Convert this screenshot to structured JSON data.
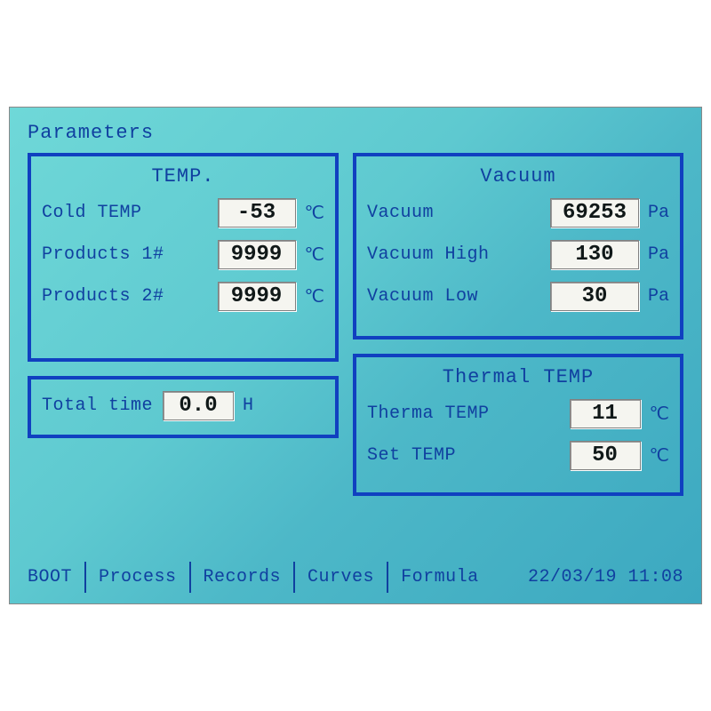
{
  "title": "Parameters",
  "temp_panel": {
    "title": "TEMP.",
    "rows": [
      {
        "label": "Cold TEMP",
        "value": "-53",
        "unit": "℃"
      },
      {
        "label": "Products 1#",
        "value": "9999",
        "unit": "℃"
      },
      {
        "label": "Products 2#",
        "value": "9999",
        "unit": "℃"
      }
    ]
  },
  "time_panel": {
    "label": "Total time",
    "value": "0.0",
    "unit": "H"
  },
  "vacuum_panel": {
    "title": "Vacuum",
    "rows": [
      {
        "label": "Vacuum",
        "value": "69253",
        "unit": "Pa"
      },
      {
        "label": "Vacuum High",
        "value": "130",
        "unit": "Pa"
      },
      {
        "label": "Vacuum Low",
        "value": "30",
        "unit": "Pa"
      }
    ]
  },
  "thermal_panel": {
    "title": "Thermal TEMP",
    "rows": [
      {
        "label": "Therma TEMP",
        "value": "11",
        "unit": "℃"
      },
      {
        "label": "Set TEMP",
        "value": "50",
        "unit": "℃"
      }
    ]
  },
  "nav": {
    "boot": "BOOT",
    "process": "Process",
    "records": "Records",
    "curves": "Curves",
    "formula": "Formula"
  },
  "timestamp": "22/03/19 11:08",
  "colors": {
    "border": "#1040c0",
    "text": "#1040a0",
    "value_bg": "#f5f5f0",
    "value_fg": "#101818",
    "screen_bg_from": "#6fd8d8",
    "screen_bg_to": "#3ca8c0"
  }
}
